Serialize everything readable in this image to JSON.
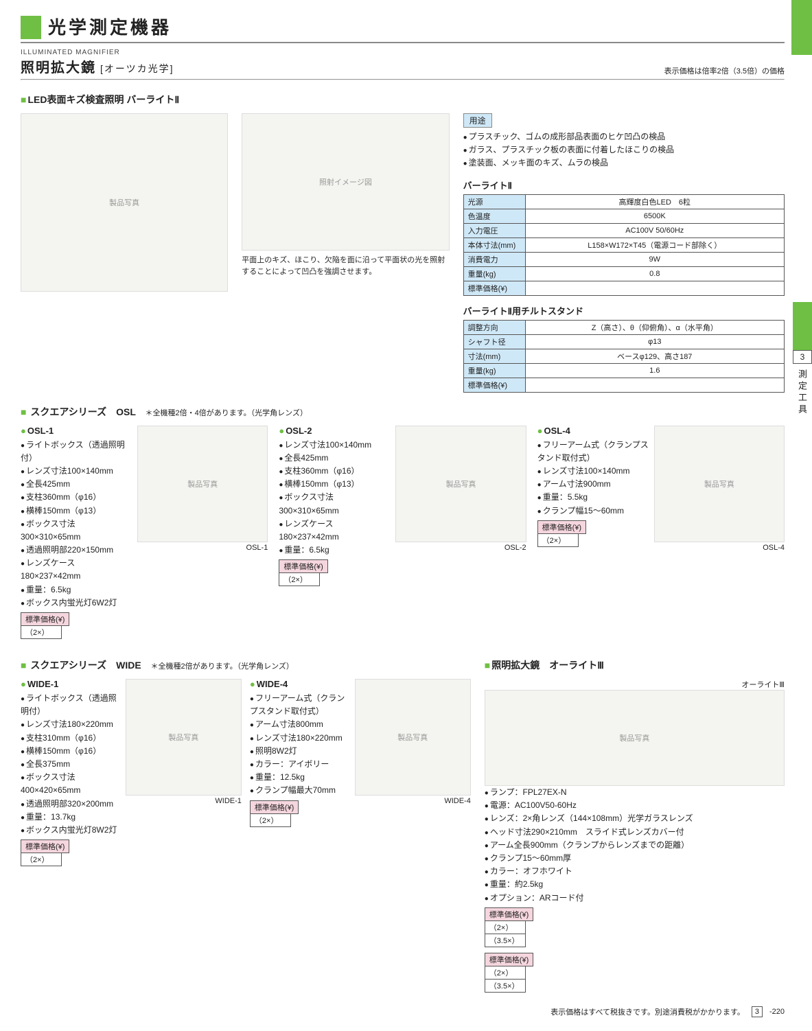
{
  "header": {
    "title": "光学測定機器",
    "subtitle_en": "ILLUMINATED MAGNIFIER",
    "subtitle_jp": "照明拡大鏡",
    "subtitle_brand": "[オーツカ光学]",
    "right_note": "表示価格は倍率2倍（3.5倍）の価格"
  },
  "side_tab": {
    "number": "3",
    "label": "測定工具"
  },
  "barlight": {
    "section": "LED表面キズ検査照明 バーライトⅡ",
    "caption": "平面上のキズ、ほこり、欠陥を面に沿って平面状の光を照射することによって凹凸を強調させます。",
    "use_label": "用途",
    "uses": [
      "プラスチック、ゴムの成形部品表面のヒケ凹凸の検品",
      "ガラス、プラスチック板の表面に付着したほこりの検品",
      "塗装面、メッキ面のキズ、ムラの検品"
    ],
    "spec1_title": "バーライトⅡ",
    "spec1": [
      [
        "光源",
        "高輝度白色LED　6粒"
      ],
      [
        "色温度",
        "6500K"
      ],
      [
        "入力電圧",
        "AC100V 50/60Hz"
      ],
      [
        "本体寸法(mm)",
        "L158×W172×T45（電源コード部除く）"
      ],
      [
        "消費電力",
        "9W"
      ],
      [
        "重量(kg)",
        "0.8"
      ],
      [
        "標準価格(¥)",
        ""
      ]
    ],
    "spec2_title": "バーライトⅡ用チルトスタンド",
    "spec2": [
      [
        "調整方向",
        "Z（高さ）、θ（仰俯角）、α（水平角）"
      ],
      [
        "シャフト径",
        "φ13"
      ],
      [
        "寸法(mm)",
        "ベースφ129、高さ187"
      ],
      [
        "重量(kg)",
        "1.6"
      ],
      [
        "標準価格(¥)",
        ""
      ]
    ]
  },
  "square_osl": {
    "section": "スクエアシリーズ　OSL",
    "note": "＊全機種2倍・4倍があります。（光学角レンズ）",
    "items": [
      {
        "name": "OSL-1",
        "specs": [
          "ライトボックス（透過照明付）",
          "レンズ寸法100×140mm",
          "全長425mm",
          "支柱360mm（φ16）",
          "横棒150mm（φ13）",
          "ボックス寸法300×310×65mm",
          "透過照明部220×150mm",
          "レンズケース180×237×42mm",
          "重量：6.5kg",
          "ボックス内蛍光灯6W2灯"
        ],
        "price_header": "標準価格(¥)",
        "price_row": "（2×）",
        "img_label": "OSL-1"
      },
      {
        "name": "OSL-2",
        "specs": [
          "レンズ寸法100×140mm",
          "全長425mm",
          "支柱360mm（φ16）",
          "横棒150mm（φ13）",
          "ボックス寸法300×310×65mm",
          "レンズケース180×237×42mm",
          "重量：6.5kg"
        ],
        "price_header": "標準価格(¥)",
        "price_row": "（2×）",
        "img_label": "OSL-2"
      },
      {
        "name": "OSL-4",
        "specs": [
          "フリーアーム式（クランプスタンド取付式）",
          "レンズ寸法100×140mm",
          "アーム寸法900mm",
          "重量：5.5kg",
          "クランプ幅15～60mm"
        ],
        "price_header": "標準価格(¥)",
        "price_row": "（2×）",
        "img_label": "OSL-4"
      }
    ]
  },
  "square_wide": {
    "section": "スクエアシリーズ　WIDE",
    "note": "＊全機種2倍があります。（光学角レンズ）",
    "wide1": {
      "name": "WIDE-1",
      "specs": [
        "ライトボックス（透過照明付）",
        "レンズ寸法180×220mm",
        "支柱310mm（φ16）",
        "横棒150mm（φ16）",
        "全長375mm",
        "ボックス寸法400×420×65mm",
        "透過照明部320×200mm",
        "重量：13.7kg",
        "ボックス内蛍光灯8W2灯"
      ],
      "price_header": "標準価格(¥)",
      "price_row": "（2×）",
      "img_label": "WIDE-1"
    },
    "wide4": {
      "name": "WIDE-4",
      "specs": [
        "フリーアーム式（クランプスタンド取付式）",
        "アーム寸法800mm",
        "レンズ寸法180×220mm",
        "照明8W2灯",
        "カラー：アイボリー",
        "重量：12.5kg",
        "クランプ幅最大70mm"
      ],
      "price_header": "標準価格(¥)",
      "price_row": "（2×）",
      "img_label": "WIDE-4"
    }
  },
  "olight": {
    "section": "照明拡大鏡　オーライトⅢ",
    "img_label": "オーライトⅢ",
    "specs": [
      "ランプ：FPL27EX-N",
      "電源：AC100V50-60Hz",
      "レンズ：2×角レンズ（144×108mm）光学ガラスレンズ",
      "ヘッド寸法290×210mm　スライド式レンズカバー付",
      "アーム全長900mm（クランプからレンズまでの距離）",
      "クランプ15～60mm厚",
      "カラー：オフホワイト",
      "重量：約2.5kg",
      "オプション：ARコード付"
    ],
    "price_header": "標準価格(¥)",
    "price_rows": [
      "（2×）",
      "（3.5×）"
    ]
  },
  "footer": {
    "note": "表示価格はすべて税抜きです。別途消費税がかかります。",
    "section": "3",
    "page": "-220"
  }
}
